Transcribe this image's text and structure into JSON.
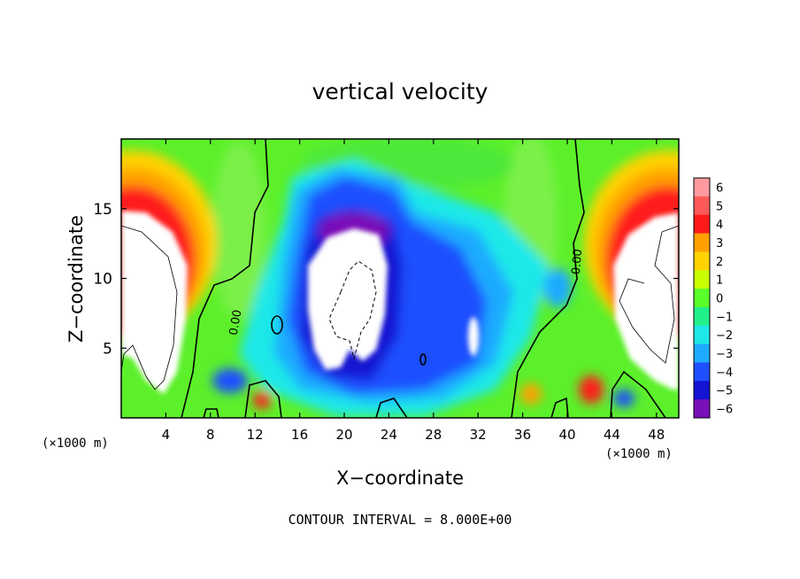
{
  "chart_data": {
    "type": "heatmap",
    "title": "vertical velocity",
    "xlabel": "X−coordinate",
    "ylabel": "Z−coordinate",
    "x_unit_left": "(×1000 m)",
    "x_unit_right": "(×1000 m)",
    "footer": "CONTOUR INTERVAL = 8.000E+00",
    "xlim": [
      0,
      50
    ],
    "ylim": [
      0,
      20
    ],
    "x_ticks": [
      4,
      8,
      12,
      16,
      20,
      24,
      28,
      32,
      36,
      40,
      44,
      48
    ],
    "x_tick_labels": [
      "4",
      "8",
      "12",
      "16",
      "20",
      "24",
      "28",
      "32",
      "36",
      "40",
      "44",
      "48"
    ],
    "y_ticks": [
      5,
      10,
      15
    ],
    "y_tick_labels": [
      "5",
      "10",
      "15"
    ],
    "contour_labels": [
      "0.00",
      "0.00"
    ],
    "colorbar": {
      "levels": [
        6,
        5,
        4,
        3,
        2,
        1,
        0,
        -1,
        -2,
        -3,
        -4,
        -5,
        -6
      ],
      "labels": [
        "6",
        "5",
        "4",
        "3",
        "2",
        "1",
        "0",
        "−1",
        "−2",
        "−3",
        "−4",
        "−5",
        "−6"
      ],
      "colors": [
        "#ff9aa0",
        "#ff5a5a",
        "#ff1a1a",
        "#ffa000",
        "#ffd200",
        "#c8ff00",
        "#5aff2a",
        "#22f08a",
        "#1ee8e8",
        "#1eaaff",
        "#1e50ff",
        "#1414d2",
        "#7a10b8"
      ]
    },
    "background": "#5cf02a"
  }
}
